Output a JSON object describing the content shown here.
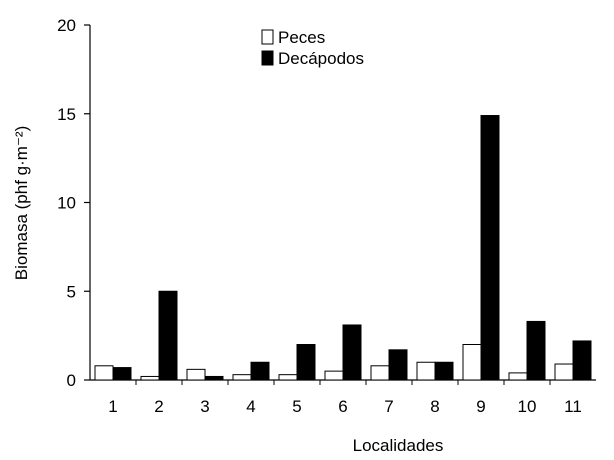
{
  "chart_data": {
    "type": "bar",
    "title": "",
    "xlabel": "Localidades",
    "ylabel": "Biomasa (phf g·m⁻²)",
    "ylim": [
      0,
      20
    ],
    "yticks": [
      0,
      5,
      10,
      15,
      20
    ],
    "categories": [
      "1",
      "2",
      "3",
      "4",
      "5",
      "6",
      "7",
      "8",
      "9",
      "10",
      "11"
    ],
    "series": [
      {
        "name": "Peces",
        "color": "#ffffff",
        "values": [
          0.8,
          0.2,
          0.6,
          0.3,
          0.3,
          0.5,
          0.8,
          1.0,
          2.0,
          0.4,
          0.9
        ]
      },
      {
        "name": "Decápodos",
        "color": "#000000",
        "values": [
          0.7,
          5.0,
          0.2,
          1.0,
          2.0,
          3.1,
          1.7,
          1.0,
          14.9,
          3.3,
          2.2
        ]
      }
    ],
    "legend_position": "top-center",
    "grid": false
  }
}
